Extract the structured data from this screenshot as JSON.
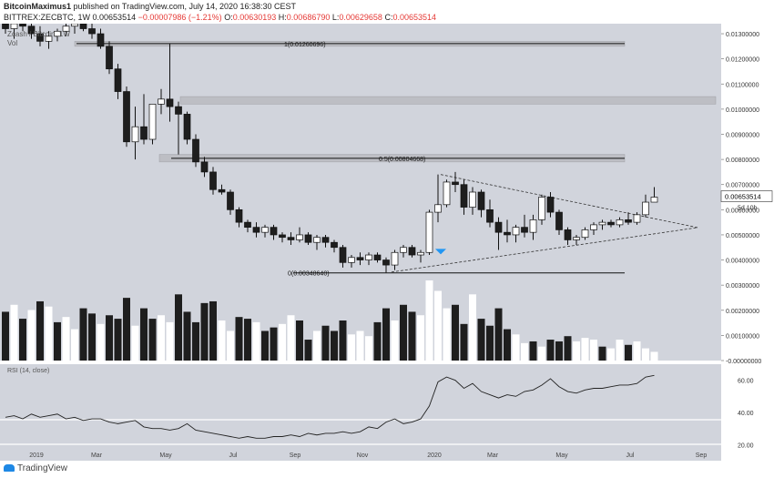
{
  "header": {
    "user": "BitcoinMaximus1",
    "published": "published on TradingView.com, July 14, 2020 16:38:30 CEST",
    "symbol": "BITTREX:ZECBTC, 1W",
    "last": "0.00653514",
    "change": "−0.00007986 (−1.21%)",
    "o_label": "O:",
    "o": "0.00630193",
    "h_label": "H:",
    "h": "0.00686790",
    "l_label": "L:",
    "l": "0.00629658",
    "c_label": "C:",
    "c": "0.00653514"
  },
  "footer": {
    "brand": "TradingView"
  },
  "colors": {
    "background": "#d1d4dc",
    "up": "#ffffff",
    "down": "#1e1e1e",
    "zone": "#bdbec4",
    "marker": "#2196f3",
    "rsi_band": "#ffffff"
  },
  "chart_data": {
    "type": "candlestick",
    "title": "Zcash / Bitcoin, 1W",
    "volume_label": "Vol",
    "rsi_label": "RSI (14, close)",
    "ylim": [
      -0.0,
      0.0134
    ],
    "x_labels": [
      "2019",
      "Mar",
      "May",
      "Jul",
      "Sep",
      "Nov",
      "2020",
      "Mar",
      "May",
      "Jul",
      "Sep"
    ],
    "price_ticks": [
      "0.01300000",
      "0.01200000",
      "0.01100000",
      "0.01000000",
      "0.00900000",
      "0.00800000",
      "0.00700000",
      "0.00653514",
      "0.00600000",
      "0.00500000",
      "0.00400000",
      "0.00300000",
      "0.00200000",
      "0.00100000",
      "-0.00000000"
    ],
    "last_price": "0.00653514",
    "countdown": "5d 10h",
    "rsi_ticks": [
      "60.00",
      "40.00",
      "20.00"
    ],
    "fib_levels": [
      {
        "label": "1(0.01260696)",
        "value": 0.01260696
      },
      {
        "label": "0.5(0.00804668)",
        "value": 0.00804668
      },
      {
        "label": "0(0.00348640)",
        "value": 0.0034864
      }
    ],
    "zones": [
      {
        "from": 0.0125,
        "to": 0.0127
      },
      {
        "from": 0.0102,
        "to": 0.0105
      },
      {
        "from": 0.0079,
        "to": 0.0082
      }
    ],
    "candles": [
      {
        "o": 0.0134,
        "h": 0.0137,
        "l": 0.013,
        "c": 0.0132
      },
      {
        "o": 0.0132,
        "h": 0.0136,
        "l": 0.0128,
        "c": 0.0134
      },
      {
        "o": 0.0134,
        "h": 0.0138,
        "l": 0.0131,
        "c": 0.0133
      },
      {
        "o": 0.0133,
        "h": 0.0136,
        "l": 0.0128,
        "c": 0.013
      },
      {
        "o": 0.013,
        "h": 0.0133,
        "l": 0.0125,
        "c": 0.0127
      },
      {
        "o": 0.0127,
        "h": 0.0131,
        "l": 0.0124,
        "c": 0.0129
      },
      {
        "o": 0.0129,
        "h": 0.0132,
        "l": 0.0127,
        "c": 0.0131
      },
      {
        "o": 0.0131,
        "h": 0.0134,
        "l": 0.0129,
        "c": 0.0133
      },
      {
        "o": 0.0133,
        "h": 0.0136,
        "l": 0.013,
        "c": 0.0134
      },
      {
        "o": 0.0134,
        "h": 0.0137,
        "l": 0.0131,
        "c": 0.0132
      },
      {
        "o": 0.0132,
        "h": 0.0134,
        "l": 0.0128,
        "c": 0.013
      },
      {
        "o": 0.013,
        "h": 0.0132,
        "l": 0.0124,
        "c": 0.0125
      },
      {
        "o": 0.0125,
        "h": 0.0127,
        "l": 0.0114,
        "c": 0.0116
      },
      {
        "o": 0.0116,
        "h": 0.0118,
        "l": 0.0104,
        "c": 0.0107
      },
      {
        "o": 0.0107,
        "h": 0.0109,
        "l": 0.0085,
        "c": 0.0087
      },
      {
        "o": 0.0087,
        "h": 0.0101,
        "l": 0.008,
        "c": 0.0093
      },
      {
        "o": 0.0093,
        "h": 0.0106,
        "l": 0.0086,
        "c": 0.0088
      },
      {
        "o": 0.0088,
        "h": 0.0102,
        "l": 0.0086,
        "c": 0.0102
      },
      {
        "o": 0.0102,
        "h": 0.0108,
        "l": 0.0098,
        "c": 0.0104
      },
      {
        "o": 0.0104,
        "h": 0.0126,
        "l": 0.0095,
        "c": 0.0101
      },
      {
        "o": 0.0101,
        "h": 0.0103,
        "l": 0.0082,
        "c": 0.0098
      },
      {
        "o": 0.0098,
        "h": 0.0099,
        "l": 0.0086,
        "c": 0.0088
      },
      {
        "o": 0.0088,
        "h": 0.009,
        "l": 0.0077,
        "c": 0.0079
      },
      {
        "o": 0.0079,
        "h": 0.0081,
        "l": 0.0073,
        "c": 0.0075
      },
      {
        "o": 0.0075,
        "h": 0.0077,
        "l": 0.0066,
        "c": 0.0068
      },
      {
        "o": 0.0068,
        "h": 0.007,
        "l": 0.0066,
        "c": 0.0067
      },
      {
        "o": 0.0067,
        "h": 0.0068,
        "l": 0.0058,
        "c": 0.006
      },
      {
        "o": 0.006,
        "h": 0.0061,
        "l": 0.0053,
        "c": 0.0055
      },
      {
        "o": 0.0055,
        "h": 0.0056,
        "l": 0.0051,
        "c": 0.0053
      },
      {
        "o": 0.0053,
        "h": 0.0055,
        "l": 0.0049,
        "c": 0.0051
      },
      {
        "o": 0.0051,
        "h": 0.0054,
        "l": 0.0049,
        "c": 0.0053
      },
      {
        "o": 0.0053,
        "h": 0.0054,
        "l": 0.0048,
        "c": 0.005
      },
      {
        "o": 0.005,
        "h": 0.0051,
        "l": 0.0047,
        "c": 0.0049
      },
      {
        "o": 0.0049,
        "h": 0.0051,
        "l": 0.0046,
        "c": 0.0048
      },
      {
        "o": 0.0048,
        "h": 0.0053,
        "l": 0.0047,
        "c": 0.005
      },
      {
        "o": 0.005,
        "h": 0.0051,
        "l": 0.0046,
        "c": 0.0047
      },
      {
        "o": 0.0047,
        "h": 0.005,
        "l": 0.0044,
        "c": 0.0049
      },
      {
        "o": 0.0049,
        "h": 0.005,
        "l": 0.0045,
        "c": 0.0047
      },
      {
        "o": 0.0047,
        "h": 0.0048,
        "l": 0.0043,
        "c": 0.0045
      },
      {
        "o": 0.0045,
        "h": 0.0046,
        "l": 0.0037,
        "c": 0.0039
      },
      {
        "o": 0.0039,
        "h": 0.0042,
        "l": 0.0037,
        "c": 0.0041
      },
      {
        "o": 0.0041,
        "h": 0.0043,
        "l": 0.0038,
        "c": 0.004
      },
      {
        "o": 0.004,
        "h": 0.0043,
        "l": 0.0038,
        "c": 0.0042
      },
      {
        "o": 0.0042,
        "h": 0.0043,
        "l": 0.0039,
        "c": 0.004
      },
      {
        "o": 0.004,
        "h": 0.0041,
        "l": 0.0035,
        "c": 0.0038
      },
      {
        "o": 0.0038,
        "h": 0.0044,
        "l": 0.0036,
        "c": 0.0043
      },
      {
        "o": 0.0043,
        "h": 0.0046,
        "l": 0.0041,
        "c": 0.0045
      },
      {
        "o": 0.0045,
        "h": 0.0046,
        "l": 0.0041,
        "c": 0.0042
      },
      {
        "o": 0.0042,
        "h": 0.0044,
        "l": 0.0039,
        "c": 0.0043
      },
      {
        "o": 0.0043,
        "h": 0.006,
        "l": 0.0042,
        "c": 0.0059
      },
      {
        "o": 0.0059,
        "h": 0.0074,
        "l": 0.0055,
        "c": 0.0062
      },
      {
        "o": 0.0062,
        "h": 0.0072,
        "l": 0.0061,
        "c": 0.0071
      },
      {
        "o": 0.0071,
        "h": 0.0075,
        "l": 0.0067,
        "c": 0.007
      },
      {
        "o": 0.007,
        "h": 0.0072,
        "l": 0.0058,
        "c": 0.0061
      },
      {
        "o": 0.0061,
        "h": 0.0069,
        "l": 0.0058,
        "c": 0.0067
      },
      {
        "o": 0.0067,
        "h": 0.0068,
        "l": 0.0057,
        "c": 0.006
      },
      {
        "o": 0.006,
        "h": 0.0064,
        "l": 0.0053,
        "c": 0.0055
      },
      {
        "o": 0.0055,
        "h": 0.0057,
        "l": 0.0044,
        "c": 0.0051
      },
      {
        "o": 0.0051,
        "h": 0.0056,
        "l": 0.0047,
        "c": 0.005
      },
      {
        "o": 0.005,
        "h": 0.0054,
        "l": 0.0047,
        "c": 0.0053
      },
      {
        "o": 0.0053,
        "h": 0.0058,
        "l": 0.0049,
        "c": 0.0051
      },
      {
        "o": 0.0051,
        "h": 0.0058,
        "l": 0.0048,
        "c": 0.0056
      },
      {
        "o": 0.0056,
        "h": 0.0066,
        "l": 0.0054,
        "c": 0.0065
      },
      {
        "o": 0.0065,
        "h": 0.0067,
        "l": 0.0057,
        "c": 0.0059
      },
      {
        "o": 0.0059,
        "h": 0.006,
        "l": 0.005,
        "c": 0.0052
      },
      {
        "o": 0.0052,
        "h": 0.0053,
        "l": 0.0046,
        "c": 0.0048
      },
      {
        "o": 0.0048,
        "h": 0.005,
        "l": 0.0046,
        "c": 0.0049
      },
      {
        "o": 0.0049,
        "h": 0.0053,
        "l": 0.0048,
        "c": 0.0052
      },
      {
        "o": 0.0052,
        "h": 0.0055,
        "l": 0.005,
        "c": 0.0054
      },
      {
        "o": 0.0054,
        "h": 0.0056,
        "l": 0.0052,
        "c": 0.0055
      },
      {
        "o": 0.0055,
        "h": 0.0056,
        "l": 0.0053,
        "c": 0.0054
      },
      {
        "o": 0.0054,
        "h": 0.0057,
        "l": 0.0053,
        "c": 0.0056
      },
      {
        "o": 0.0056,
        "h": 0.0059,
        "l": 0.0054,
        "c": 0.0055
      },
      {
        "o": 0.0055,
        "h": 0.0059,
        "l": 0.0054,
        "c": 0.0058
      },
      {
        "o": 0.0058,
        "h": 0.0066,
        "l": 0.0057,
        "c": 0.0063
      },
      {
        "o": 0.0063,
        "h": 0.0069,
        "l": 0.0063,
        "c": 0.0065
      }
    ],
    "volume": [
      28,
      32,
      24,
      29,
      34,
      31,
      22,
      25,
      18,
      30,
      27,
      21,
      26,
      24,
      36,
      20,
      30,
      24,
      26,
      22,
      38,
      28,
      22,
      33,
      34,
      23,
      17,
      25,
      24,
      22,
      17,
      19,
      21,
      26,
      23,
      12,
      17,
      20,
      17,
      23,
      15,
      17,
      14,
      22,
      30,
      23,
      32,
      28,
      26,
      46,
      40,
      30,
      32,
      21,
      38,
      24,
      20,
      30,
      18,
      15,
      10,
      11,
      8,
      12,
      11,
      14,
      11,
      13,
      12,
      8,
      7,
      12,
      9,
      11,
      7,
      5
    ],
    "volume_up": [
      0,
      1,
      0,
      1,
      0,
      1,
      0,
      1,
      1,
      0,
      0,
      1,
      0,
      0,
      0,
      1,
      0,
      0,
      1,
      1,
      0,
      0,
      0,
      0,
      0,
      1,
      1,
      0,
      0,
      1,
      0,
      0,
      1,
      1,
      0,
      0,
      1,
      0,
      0,
      0,
      1,
      1,
      1,
      0,
      0,
      1,
      0,
      0,
      1,
      1,
      1,
      1,
      0,
      0,
      1,
      0,
      0,
      0,
      0,
      1,
      1,
      0,
      1,
      0,
      0,
      0,
      1,
      1,
      1,
      0,
      1,
      1,
      0,
      1,
      1,
      1
    ],
    "rsi": [
      37,
      38,
      36,
      39,
      37,
      38,
      39,
      36,
      37,
      35,
      36,
      36,
      34,
      33,
      34,
      35,
      31,
      30,
      30,
      29,
      30,
      33,
      29,
      28,
      27,
      26,
      25,
      24,
      25,
      24,
      24,
      25,
      25,
      26,
      25,
      27,
      26,
      27,
      27,
      28,
      27,
      28,
      31,
      30,
      34,
      36,
      33,
      34,
      36,
      44,
      59,
      62,
      60,
      55,
      58,
      53,
      51,
      49,
      51,
      50,
      53,
      54,
      57,
      61,
      56,
      53,
      52,
      54,
      55,
      55,
      56,
      57,
      57,
      58,
      62,
      63
    ]
  }
}
